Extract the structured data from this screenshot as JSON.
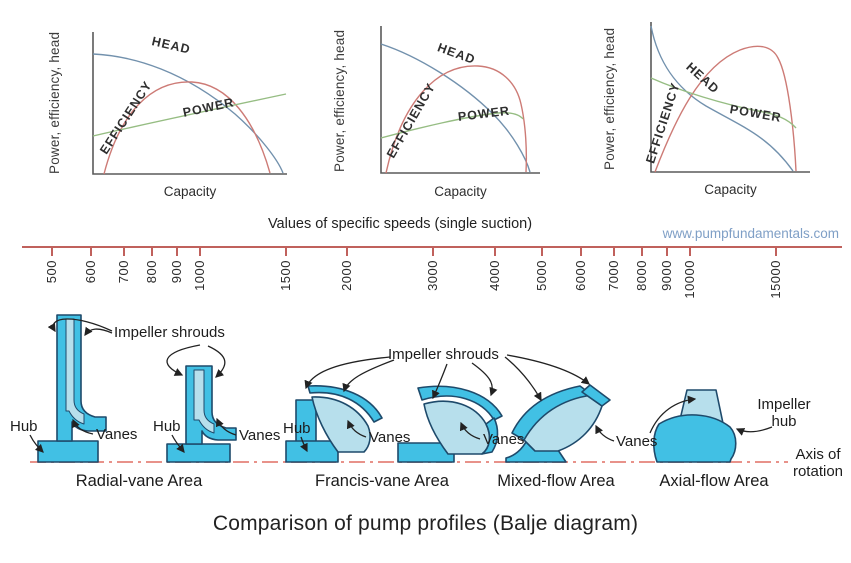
{
  "charts": [
    {
      "y_axis_label": "Power, efficiency, head",
      "x_axis_label": "Capacity",
      "curves": [
        {
          "label": "HEAD"
        },
        {
          "label": "EFFICIENCY"
        },
        {
          "label": "POWER"
        }
      ]
    },
    {
      "y_axis_label": "Power, efficiency, head",
      "x_axis_label": "Capacity",
      "curves": [
        {
          "label": "HEAD"
        },
        {
          "label": "EFFICIENCY"
        },
        {
          "label": "POWER"
        }
      ]
    },
    {
      "y_axis_label": "Power, efficiency, head",
      "x_axis_label": "Capacity",
      "curves": [
        {
          "label": "HEAD"
        },
        {
          "label": "EFFICIENCY"
        },
        {
          "label": "POWER"
        }
      ]
    }
  ],
  "chart_data": [
    {
      "type": "line",
      "title": "Radial-vane area characteristic curves (low specific speed)",
      "xlabel": "Capacity",
      "ylabel": "Power, efficiency, head",
      "qualitative": true,
      "x": [
        0,
        0.17,
        0.33,
        0.5,
        0.67,
        0.83,
        1
      ],
      "series": [
        {
          "name": "HEAD",
          "values": [
            0.84,
            0.83,
            0.8,
            0.74,
            0.62,
            0.4,
            0.02
          ]
        },
        {
          "name": "EFFICIENCY",
          "values": [
            0.0,
            0.38,
            0.6,
            0.67,
            0.63,
            0.42,
            0.02
          ]
        },
        {
          "name": "POWER",
          "values": [
            0.27,
            0.33,
            0.39,
            0.45,
            0.5,
            0.55,
            0.58
          ]
        }
      ],
      "ylim": [
        0,
        1
      ],
      "grid": false,
      "legend_position": "inline-labels"
    },
    {
      "type": "line",
      "title": "Francis-vane / mixed-flow area characteristic curves (medium specific speed)",
      "xlabel": "Capacity",
      "ylabel": "Power, efficiency, head",
      "qualitative": true,
      "x": [
        0,
        0.17,
        0.33,
        0.5,
        0.67,
        0.83,
        1
      ],
      "series": [
        {
          "name": "HEAD",
          "values": [
            0.88,
            0.82,
            0.72,
            0.6,
            0.44,
            0.24,
            0.02
          ]
        },
        {
          "name": "EFFICIENCY",
          "values": [
            0.0,
            0.4,
            0.62,
            0.72,
            0.7,
            0.5,
            0.03
          ]
        },
        {
          "name": "POWER",
          "values": [
            0.25,
            0.32,
            0.38,
            0.42,
            0.44,
            0.43,
            0.38
          ]
        }
      ],
      "ylim": [
        0,
        1
      ],
      "grid": false,
      "legend_position": "inline-labels"
    },
    {
      "type": "line",
      "title": "Axial-flow area characteristic curves (high specific speed)",
      "xlabel": "Capacity",
      "ylabel": "Power, efficiency, head",
      "qualitative": true,
      "x": [
        0,
        0.17,
        0.33,
        0.5,
        0.67,
        0.83,
        1
      ],
      "series": [
        {
          "name": "HEAD",
          "values": [
            0.97,
            0.72,
            0.52,
            0.4,
            0.32,
            0.24,
            0.06
          ]
        },
        {
          "name": "EFFICIENCY",
          "values": [
            0.0,
            0.3,
            0.58,
            0.78,
            0.84,
            0.6,
            0.04
          ]
        },
        {
          "name": "POWER",
          "values": [
            0.62,
            0.54,
            0.48,
            0.44,
            0.4,
            0.34,
            0.28
          ]
        }
      ],
      "ylim": [
        0,
        1
      ],
      "grid": false,
      "legend_position": "inline-labels"
    }
  ],
  "scale": {
    "title": "Values of specific speeds (single suction)",
    "website": "www.pumpfundamentals.com",
    "values": [
      500,
      600,
      700,
      800,
      900,
      1000,
      1500,
      2000,
      3000,
      4000,
      5000,
      6000,
      7000,
      8000,
      9000,
      10000,
      15000
    ],
    "scale_type": "logarithmic"
  },
  "profiles": {
    "impeller_shrouds_label": "Impeller shrouds",
    "hub_label": "Hub",
    "vanes_label": "Vanes",
    "impeller_hub_label": "Impeller hub",
    "axis_of_rotation_label": "Axis of rotation",
    "areas": [
      {
        "label": "Radial-vane Area"
      },
      {
        "label": "Francis-vane Area"
      },
      {
        "label": "Mixed-flow Area"
      },
      {
        "label": "Axial-flow Area"
      }
    ]
  },
  "footer": {
    "title": "Comparison of pump profiles (Balje diagram)"
  },
  "colors": {
    "head": "#7291ad",
    "efficiency": "#cd7b76",
    "power": "#96bd83",
    "chart_axis": "#5a5a5a",
    "scale_line": "#c0615c",
    "axis_line": "#e8928a",
    "impeller_fill": "#41c0e4",
    "impeller_light": "#b7dfec",
    "outline": "#1e4a6b",
    "arrow": "#222222",
    "website_link": "#7f9fc6"
  }
}
